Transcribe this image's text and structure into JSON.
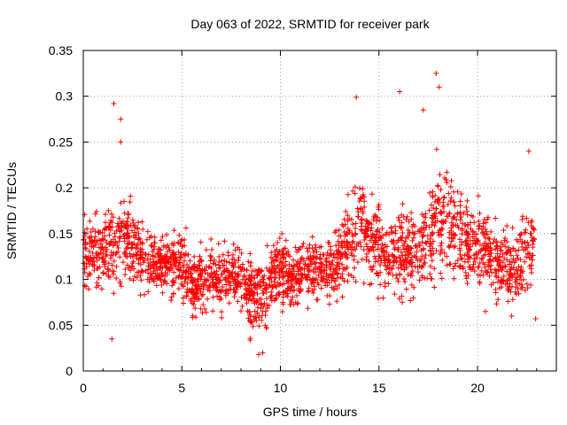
{
  "chart_data": {
    "type": "scatter",
    "title": "Day 063 of 2022, SRMTID for receiver park",
    "xlabel": "GPS time / hours",
    "ylabel": "SRMTID / TECUs",
    "xlim": [
      0,
      24
    ],
    "ylim": [
      0,
      0.35
    ],
    "grid": true,
    "marker": "plus",
    "color": "#ff0000",
    "x_ticks": [
      0,
      5,
      10,
      15,
      20
    ],
    "x_tick_labels": [
      "0",
      "5",
      "10",
      "15",
      "20"
    ],
    "y_ticks": [
      0,
      0.05,
      0.1,
      0.15,
      0.2,
      0.25,
      0.3,
      0.35
    ],
    "y_tick_labels": [
      "0",
      "0.05",
      "0.1",
      "0.15",
      "0.2",
      "0.25",
      "0.3",
      "0.35"
    ],
    "series": [
      {
        "name": "SRMTID",
        "envelope": {
          "hours": [
            0,
            0.5,
            1,
            1.5,
            1.8,
            2,
            2.5,
            3,
            3.5,
            4,
            4.5,
            5,
            5.5,
            6,
            6.5,
            7,
            7.5,
            8,
            8.5,
            9,
            9.5,
            10,
            10.5,
            11,
            11.5,
            12,
            12.5,
            13,
            13.5,
            14,
            14.5,
            15,
            15.5,
            16,
            16.5,
            17,
            17.5,
            18,
            18.5,
            19,
            19.5,
            20,
            20.5,
            21,
            21.5,
            22,
            22.5,
            22.9
          ],
          "median": [
            0.125,
            0.13,
            0.135,
            0.13,
            0.145,
            0.15,
            0.14,
            0.12,
            0.12,
            0.12,
            0.115,
            0.12,
            0.095,
            0.1,
            0.105,
            0.1,
            0.11,
            0.1,
            0.085,
            0.08,
            0.095,
            0.11,
            0.105,
            0.105,
            0.11,
            0.115,
            0.11,
            0.12,
            0.14,
            0.16,
            0.15,
            0.135,
            0.125,
            0.135,
            0.13,
            0.125,
            0.14,
            0.17,
            0.16,
            0.145,
            0.14,
            0.145,
            0.13,
            0.12,
            0.115,
            0.11,
            0.135,
            0.13
          ],
          "spread": [
            0.035,
            0.035,
            0.04,
            0.045,
            0.06,
            0.045,
            0.035,
            0.035,
            0.03,
            0.03,
            0.03,
            0.035,
            0.03,
            0.035,
            0.035,
            0.03,
            0.035,
            0.035,
            0.035,
            0.035,
            0.035,
            0.035,
            0.03,
            0.03,
            0.03,
            0.03,
            0.03,
            0.035,
            0.04,
            0.05,
            0.045,
            0.04,
            0.04,
            0.045,
            0.04,
            0.04,
            0.045,
            0.06,
            0.05,
            0.045,
            0.04,
            0.04,
            0.035,
            0.035,
            0.035,
            0.035,
            0.04,
            0.04
          ]
        },
        "extremes": [
          [
            1.55,
            0.292
          ],
          [
            1.9,
            0.275
          ],
          [
            1.9,
            0.25
          ],
          [
            13.85,
            0.299
          ],
          [
            16.05,
            0.305
          ],
          [
            17.25,
            0.285
          ],
          [
            17.9,
            0.325
          ],
          [
            18.05,
            0.31
          ],
          [
            22.6,
            0.24
          ],
          [
            8.9,
            0.018
          ],
          [
            9.1,
            0.02
          ],
          [
            1.45,
            0.035
          ],
          [
            22.95,
            0.057
          ],
          [
            20.4,
            0.065
          ]
        ],
        "point_count": 2400
      }
    ]
  }
}
